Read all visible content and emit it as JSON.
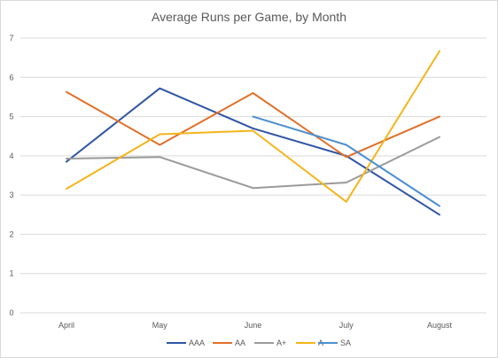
{
  "chart_data": {
    "type": "line",
    "title": "Average Runs per Game, by Month",
    "xlabel": "",
    "ylabel": "",
    "categories": [
      "April",
      "May",
      "June",
      "July",
      "August"
    ],
    "ylim": [
      0,
      7
    ],
    "yticks": [
      0,
      1,
      2,
      3,
      4,
      5,
      6,
      7
    ],
    "grid": true,
    "legend_position": "bottom",
    "series": [
      {
        "name": "AAA",
        "color": "#2f55a4",
        "values": [
          3.85,
          5.72,
          4.7,
          4.0,
          2.5
        ]
      },
      {
        "name": "AA",
        "color": "#e0702a",
        "values": [
          5.63,
          4.28,
          5.6,
          3.97,
          5.0
        ]
      },
      {
        "name": "A+",
        "color": "#9a9a9a",
        "values": [
          3.93,
          3.97,
          3.18,
          3.32,
          4.48
        ]
      },
      {
        "name": "A",
        "color": "#f4b51b",
        "values": [
          3.16,
          4.55,
          4.64,
          2.83,
          6.67
        ]
      },
      {
        "name": "SA",
        "color": "#4d8fcf",
        "values": [
          null,
          null,
          5.0,
          4.28,
          2.72
        ]
      }
    ]
  }
}
